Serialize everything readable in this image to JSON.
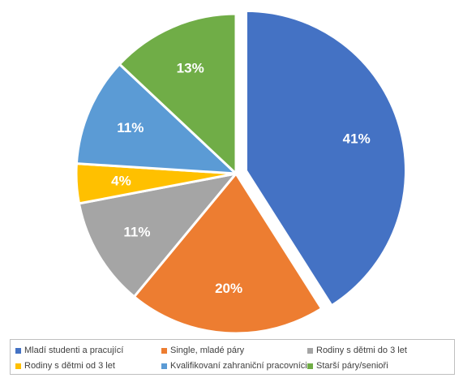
{
  "chart_data": {
    "type": "pie",
    "title": "",
    "start_angle_deg": 0,
    "direction": "clockwise",
    "exploded_slices": [
      "Mladí studenti a pracující"
    ],
    "legend_position": "bottom",
    "slices": [
      {
        "label": "Mladí studenti a pracující",
        "value": 41,
        "display": "41%",
        "color": "#4472C4"
      },
      {
        "label": "Single, mladé páry",
        "value": 20,
        "display": "20%",
        "color": "#ED7D31"
      },
      {
        "label": "Rodiny s dětmi do 3 let",
        "value": 11,
        "display": "11%",
        "color": "#A5A5A5"
      },
      {
        "label": "Rodiny s dětmi od 3 let",
        "value": 4,
        "display": "4%",
        "color": "#FFC000"
      },
      {
        "label": "Kvalifikovaní zahraniční pracovníci",
        "value": 11,
        "display": "11%",
        "color": "#5B9BD5"
      },
      {
        "label": "Starší páry/senioři",
        "value": 13,
        "display": "13%",
        "color": "#70AD47"
      }
    ]
  }
}
